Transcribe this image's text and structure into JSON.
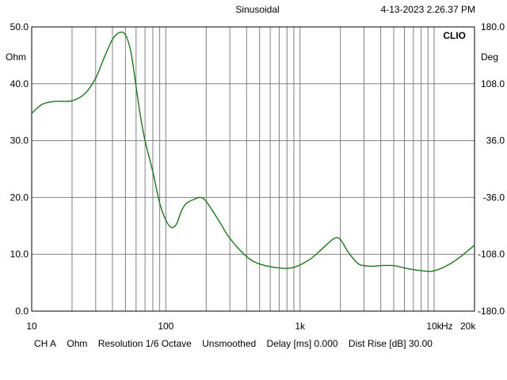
{
  "header": {
    "mode": "Sinusoidal",
    "datetime": "4-13-2023 2.26.37 PM"
  },
  "brand": "CLIO",
  "footer": {
    "channel": "CH A",
    "unit": "Ohm",
    "resolution": "Resolution 1/6 Octave",
    "smoothing": "Unsmoothed",
    "delay": "Delay [ms] 0.000",
    "dist_rise": "Dist Rise [dB] 30.00"
  },
  "colors": {
    "trace": "#1a7a1a",
    "grid": "#808080",
    "frame": "#000000"
  },
  "chart_data": {
    "type": "line",
    "title": "",
    "x_scale": "log",
    "xlim": [
      10,
      20000
    ],
    "x_tick_values": [
      10,
      100,
      1000,
      10000,
      20000
    ],
    "x_tick_labels": [
      "10",
      "100",
      "1k",
      "10k",
      "20k"
    ],
    "x_unit_label": "Hz",
    "ylim": [
      0,
      50
    ],
    "y_tick_labels": [
      "0.0",
      "10.0",
      "20.0",
      "30.0",
      "40.0",
      "50.0"
    ],
    "ylabel": "Ohm",
    "y2lim": [
      -180,
      180
    ],
    "y2_tick_labels": [
      "-180.0",
      "-108.0",
      "-36.0",
      "36.0",
      "108.0",
      "180.0"
    ],
    "y2label": "Deg",
    "grid": true,
    "series": [
      {
        "color": "#1a7a1a",
        "x": [
          10,
          12,
          15,
          20,
          25,
          30,
          35,
          40,
          45,
          50,
          55,
          60,
          65,
          70,
          80,
          90,
          100,
          110,
          120,
          130,
          140,
          150,
          160,
          180,
          200,
          250,
          300,
          400,
          500,
          700,
          900,
          1200,
          1500,
          1800,
          2000,
          2300,
          2700,
          3000,
          3500,
          4000,
          5000,
          6000,
          7000,
          9000,
          10000,
          12000,
          15000,
          20000
        ],
        "y": [
          34.8,
          36.4,
          36.9,
          37.0,
          38.3,
          41.0,
          44.8,
          47.8,
          49.0,
          48.6,
          45.5,
          39.5,
          34.0,
          30.0,
          24.5,
          19.0,
          16.0,
          14.7,
          15.3,
          17.5,
          18.8,
          19.3,
          19.6,
          20.0,
          19.3,
          15.8,
          12.8,
          9.6,
          8.3,
          7.6,
          7.7,
          9.2,
          11.2,
          12.8,
          12.6,
          10.3,
          8.4,
          8.0,
          7.9,
          8.0,
          8.0,
          7.6,
          7.3,
          7.0,
          7.1,
          7.8,
          9.2,
          11.6
        ]
      }
    ]
  }
}
